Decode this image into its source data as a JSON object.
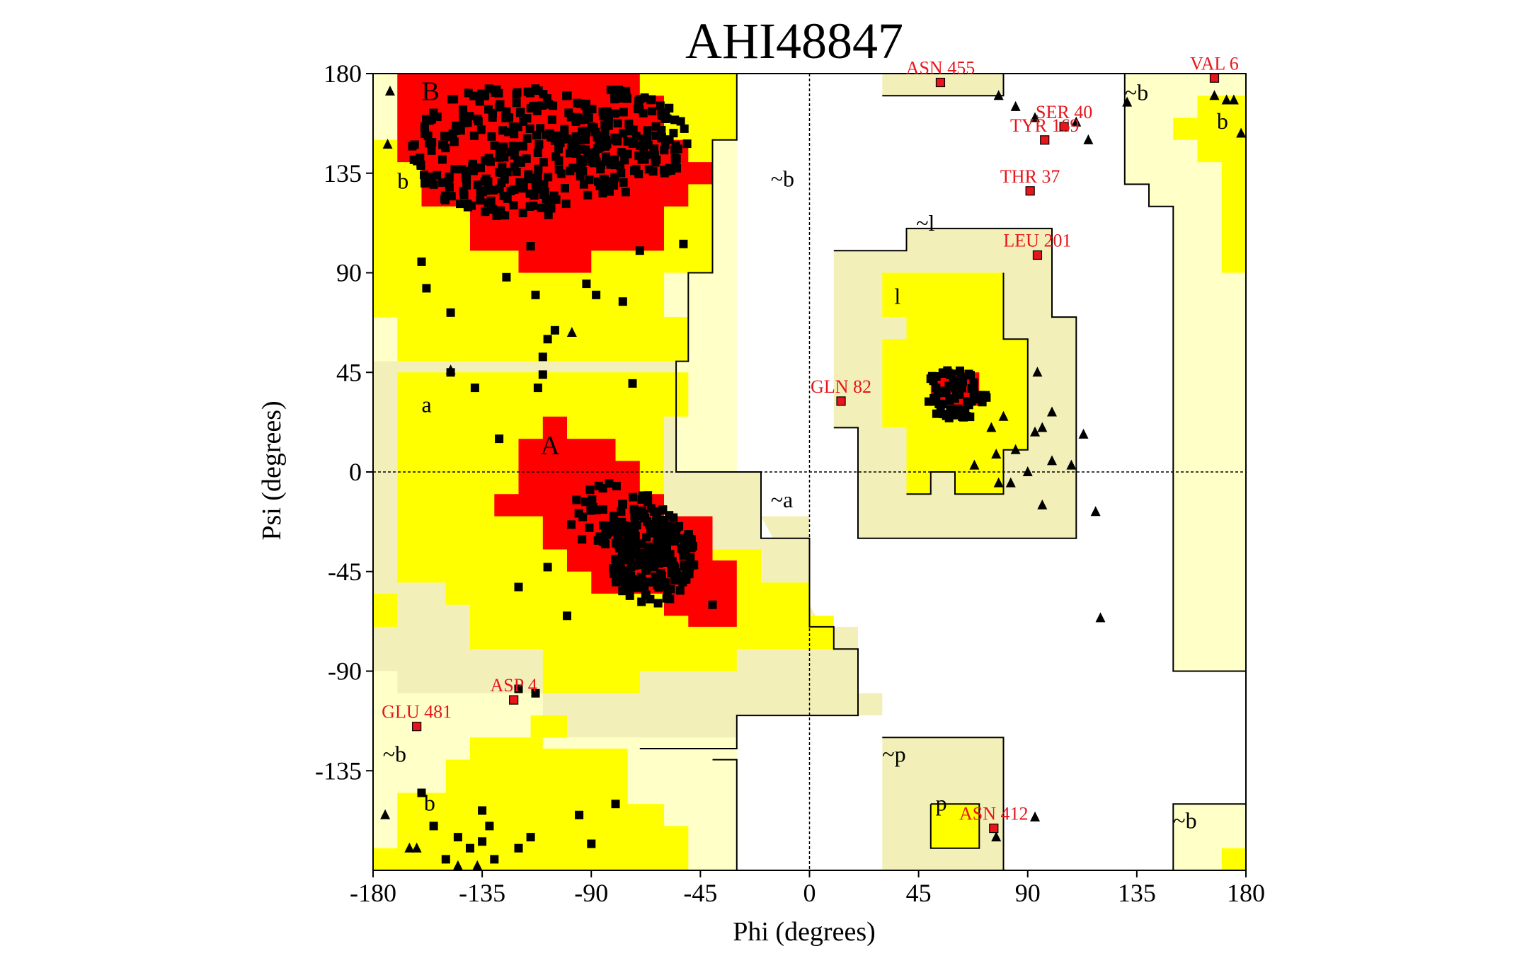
{
  "chart_data": {
    "type": "scatter",
    "title": "AHI48847",
    "xlabel": "Phi (degrees)",
    "ylabel": "Psi (degrees)",
    "xlim": [
      -180,
      180
    ],
    "ylim": [
      -180,
      180
    ],
    "xticks": [
      "-180",
      "-135",
      "-90",
      "-45",
      "0",
      "45",
      "90",
      "135",
      "180"
    ],
    "yticks": [
      "180",
      "135",
      "90",
      "45",
      "0",
      "-45",
      "-90",
      "-135"
    ],
    "colors": {
      "core": "#ff0000",
      "allowed": "#ffff00",
      "generous": "#f2f0b8",
      "pale": "#ffffc8",
      "outlier": "#e8151b",
      "text": "#000000"
    },
    "region_labels": [
      {
        "text": "B",
        "phi": -160,
        "psi": 168
      },
      {
        "text": "b",
        "phi": -170,
        "psi": 128
      },
      {
        "text": "~b",
        "phi": -16,
        "psi": 129
      },
      {
        "text": "~l",
        "phi": 44,
        "psi": 109
      },
      {
        "text": "l",
        "phi": 35,
        "psi": 76
      },
      {
        "text": "a",
        "phi": -160,
        "psi": 27
      },
      {
        "text": "A",
        "phi": -111,
        "psi": 8
      },
      {
        "text": "~a",
        "phi": -16,
        "psi": -16
      },
      {
        "text": "~b",
        "phi": 130,
        "psi": 168
      },
      {
        "text": "b",
        "phi": 168,
        "psi": 155
      },
      {
        "text": "~b",
        "phi": -176,
        "psi": -131
      },
      {
        "text": "b",
        "phi": -159,
        "psi": -153
      },
      {
        "text": "~p",
        "phi": 30,
        "psi": -131
      },
      {
        "text": "p",
        "phi": 52,
        "psi": -153
      },
      {
        "text": "~b",
        "phi": 150,
        "psi": -161
      }
    ],
    "outliers": [
      {
        "label": "ASN 455",
        "phi": 54,
        "psi": 176
      },
      {
        "label": "VAL 6",
        "phi": 167,
        "psi": 178
      },
      {
        "label": "SER 40",
        "phi": 105,
        "psi": 156
      },
      {
        "label": "TYR 169",
        "phi": 97,
        "psi": 150
      },
      {
        "label": "THR 37",
        "phi": 91,
        "psi": 127
      },
      {
        "label": "LEU 201",
        "phi": 94,
        "psi": 98
      },
      {
        "label": "GLN 82",
        "phi": 13,
        "psi": 32
      },
      {
        "label": "ASP 4",
        "phi": -122,
        "psi": -103
      },
      {
        "label": "GLU 481",
        "phi": -162,
        "psi": -115
      },
      {
        "label": "ASN 412",
        "phi": 76,
        "psi": -161
      }
    ]
  }
}
